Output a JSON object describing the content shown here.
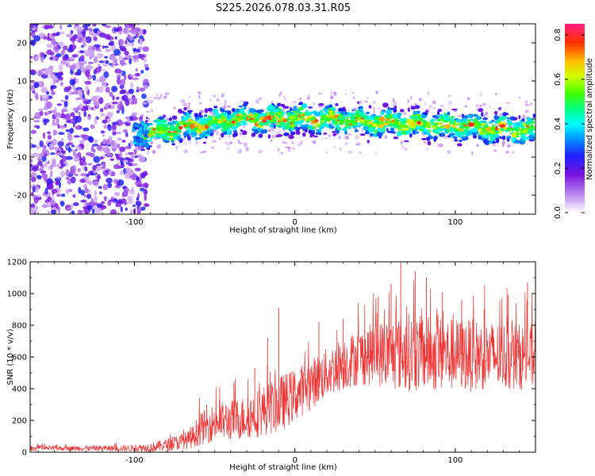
{
  "title": "S225.2026.078.03.31.R05",
  "chart_data": [
    {
      "type": "heatmap",
      "xlabel": "Height of straight line (km)",
      "ylabel": "Frequency (Hz)",
      "xlim": [
        -165,
        150
      ],
      "ylim": [
        -25,
        25
      ],
      "xticks": [
        -100,
        0,
        100
      ],
      "xtick_labels": [
        "-100",
        "0",
        "100"
      ],
      "yticks": [
        -20,
        -10,
        0,
        10,
        20
      ],
      "ytick_labels": [
        "-20",
        "-10",
        "0",
        "10",
        "20"
      ],
      "colorbar": {
        "label": "Normalized spectral amplitude",
        "range": [
          0,
          0.85
        ],
        "ticks": [
          0.0,
          0.2,
          0.4,
          0.6,
          0.8
        ],
        "tick_labels": [
          "0.0",
          "0.2",
          "0.4",
          "0.6",
          "0.8"
        ]
      },
      "features": {
        "noise_region_x": [
          -165,
          -92
        ],
        "ridge_start_x": -95,
        "ridge_frequency_start_hz": -4,
        "ridge_frequency_mid_hz": 0,
        "ridge_frequency_end_hz": -3,
        "ridge_width_hz": 3
      }
    },
    {
      "type": "line",
      "xlabel": "Height of straight line (km)",
      "ylabel": "SNR (10 * v/v)",
      "xlim": [
        -165,
        150
      ],
      "ylim": [
        0,
        1200
      ],
      "xticks": [
        -100,
        0,
        100
      ],
      "xtick_labels": [
        "-100",
        "0",
        "100"
      ],
      "yticks": [
        0,
        200,
        400,
        600,
        800,
        1000,
        1200
      ],
      "ytick_labels": [
        "0",
        "200",
        "400",
        "600",
        "800",
        "1000",
        "1200"
      ],
      "color": "#ee3333",
      "envelope": {
        "x": [
          -165,
          -140,
          -100,
          -90,
          -80,
          -65,
          -60,
          -50,
          -40,
          -30,
          -20,
          -10,
          0,
          10,
          20,
          30,
          40,
          50,
          60,
          70,
          80,
          90,
          100,
          110,
          120,
          130,
          140,
          150
        ],
        "baseline": [
          25,
          25,
          25,
          30,
          45,
          80,
          140,
          190,
          200,
          220,
          260,
          300,
          360,
          430,
          500,
          560,
          600,
          620,
          620,
          630,
          620,
          620,
          615,
          610,
          610,
          605,
          600,
          600
        ],
        "spread": [
          15,
          15,
          20,
          30,
          40,
          60,
          100,
          120,
          130,
          140,
          160,
          180,
          170,
          160,
          160,
          170,
          180,
          200,
          230,
          250,
          240,
          240,
          230,
          230,
          220,
          220,
          210,
          200
        ]
      },
      "peaks": [
        {
          "x": -65,
          "y": 160
        },
        {
          "x": -55,
          "y": 300
        },
        {
          "x": -47,
          "y": 330
        },
        {
          "x": -38,
          "y": 440
        },
        {
          "x": -25,
          "y": 530
        },
        {
          "x": -17,
          "y": 720
        },
        {
          "x": -10,
          "y": 910
        },
        {
          "x": 15,
          "y": 820
        },
        {
          "x": 30,
          "y": 840
        },
        {
          "x": 52,
          "y": 980
        },
        {
          "x": 60,
          "y": 1060
        },
        {
          "x": 66,
          "y": 1200
        },
        {
          "x": 75,
          "y": 1140
        },
        {
          "x": 82,
          "y": 1100
        },
        {
          "x": 92,
          "y": 1010
        },
        {
          "x": 104,
          "y": 960
        },
        {
          "x": 118,
          "y": 900
        },
        {
          "x": 133,
          "y": 990
        },
        {
          "x": 145,
          "y": 1070
        }
      ]
    }
  ]
}
